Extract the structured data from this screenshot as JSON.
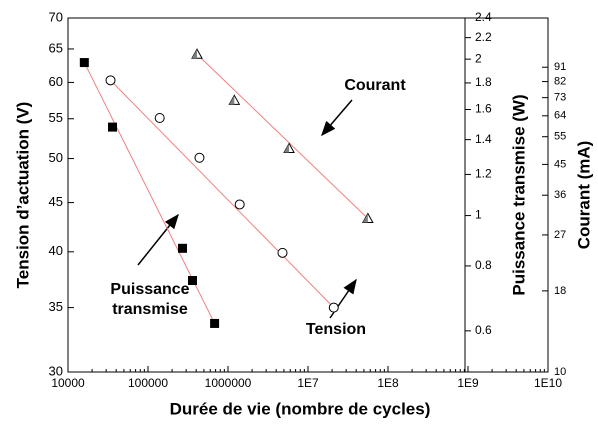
{
  "chart_data": {
    "type": "scatter",
    "x_label": "Durée de vie (nombre de cycles)",
    "y_label": "Tension d’actuation (V)",
    "y2_label": "Puissance transmise (W)",
    "y3_label": "Courant (mA)",
    "xscale": "log",
    "yscale": "log",
    "xlim": [
      10000,
      10000000000
    ],
    "xticks": [
      10000,
      100000,
      1000000,
      {
        "value": 10000000,
        "label": "1E7"
      },
      {
        "value": 100000000,
        "label": "1E8"
      },
      {
        "value": 1000000000,
        "label": "1E9"
      },
      {
        "value": 10000000000,
        "label": "1E10"
      }
    ],
    "ylim": [
      30,
      70
    ],
    "yticks": [
      30,
      35,
      40,
      45,
      50,
      55,
      60,
      65,
      70
    ],
    "y2lim": [
      0.5,
      2.4
    ],
    "y2ticks": [
      0.6,
      0.8,
      1,
      1.2,
      1.4,
      1.6,
      1.8,
      2,
      2.2,
      2.4
    ],
    "y3lim": [
      10,
      130
    ],
    "y3ticks": [
      10,
      18,
      27,
      36,
      45,
      55,
      64,
      73,
      82,
      91
    ],
    "series": [
      {
        "name": "Puissance transmise",
        "marker": "square",
        "color": "#000000",
        "axis": "y2",
        "x": [
          16000,
          36000,
          270000,
          360000,
          680000
        ],
        "values": [
          1.97,
          1.48,
          0.865,
          0.75,
          0.62
        ]
      },
      {
        "name": "Tension",
        "marker": "circle",
        "color": "#ffffff",
        "axis": "y",
        "x": [
          34000,
          140000,
          440000,
          1400000,
          4800000,
          21000000
        ],
        "values": [
          60.3,
          55.1,
          50.1,
          44.8,
          39.9,
          35.0
        ]
      },
      {
        "name": "Courant",
        "marker": "triangle",
        "color": "#808080",
        "axis": "y3",
        "x": [
          410000,
          1200000,
          5800000,
          56000000
        ],
        "values": [
          100,
          71.6,
          50.5,
          30.4
        ]
      }
    ],
    "fit_color": "#f08080"
  }
}
